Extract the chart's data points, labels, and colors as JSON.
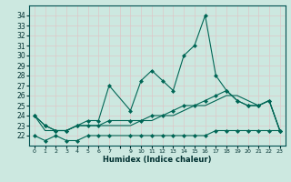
{
  "xlabel": "Humidex (Indice chaleur)",
  "bg_color": "#cce8e0",
  "grid_color": "#b0d8d0",
  "line_color": "#006655",
  "x_values": [
    0,
    1,
    2,
    3,
    4,
    5,
    6,
    7,
    9,
    10,
    11,
    12,
    13,
    14,
    15,
    16,
    17,
    18,
    19,
    20,
    21,
    22,
    23
  ],
  "line1": [
    24.0,
    23.0,
    22.5,
    22.5,
    23.0,
    23.5,
    23.5,
    27.0,
    24.5,
    27.5,
    28.5,
    27.5,
    26.5,
    30.0,
    31.0,
    34.0,
    28.0,
    26.5,
    25.5,
    25.0,
    25.0,
    25.5,
    22.5
  ],
  "line2": [
    24.0,
    23.0,
    22.5,
    22.5,
    23.0,
    23.0,
    23.0,
    23.5,
    23.5,
    23.5,
    24.0,
    24.0,
    24.5,
    25.0,
    25.0,
    25.5,
    26.0,
    26.5,
    25.5,
    25.0,
    25.0,
    25.5,
    22.5
  ],
  "line3": [
    24.0,
    22.5,
    22.5,
    22.5,
    23.0,
    23.0,
    23.0,
    23.0,
    23.0,
    23.5,
    23.5,
    24.0,
    24.0,
    24.5,
    25.0,
    25.0,
    25.5,
    26.0,
    26.0,
    25.5,
    25.0,
    25.5,
    22.5
  ],
  "line4": [
    22.0,
    21.5,
    22.0,
    21.5,
    21.5,
    22.0,
    22.0,
    22.0,
    22.0,
    22.0,
    22.0,
    22.0,
    22.0,
    22.0,
    22.0,
    22.0,
    22.5,
    22.5,
    22.5,
    22.5,
    22.5,
    22.5,
    22.5
  ],
  "ylim": [
    21,
    35
  ],
  "yticks": [
    22,
    23,
    24,
    25,
    26,
    27,
    28,
    29,
    30,
    31,
    32,
    33,
    34
  ],
  "xtick_labels": [
    "0",
    "1",
    "2",
    "3",
    "4",
    "5",
    "6",
    "7",
    "",
    "9",
    "10",
    "11",
    "12",
    "13",
    "14",
    "15",
    "16",
    "17",
    "18",
    "19",
    "20",
    "21",
    "22",
    "23"
  ],
  "marker": "D",
  "markersize": 2.0,
  "linewidth": 0.8
}
